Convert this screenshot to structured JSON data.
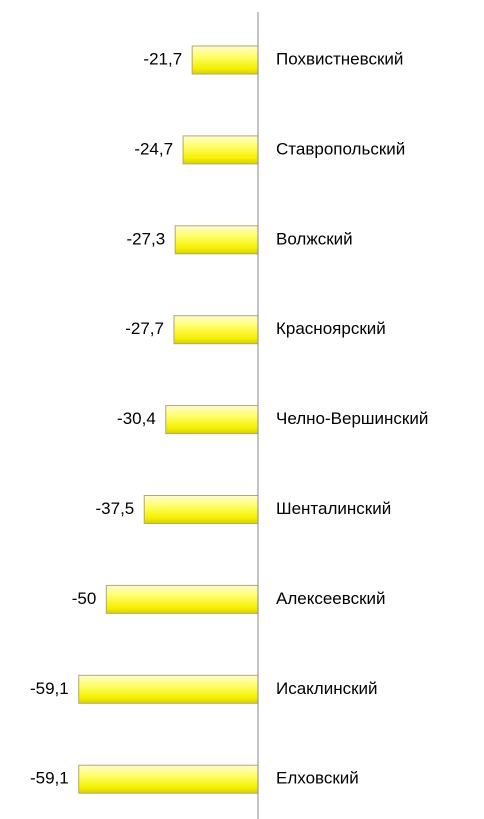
{
  "chart_data": {
    "type": "bar",
    "orientation": "horizontal",
    "categories": [
      "Похвистневский",
      "Ставропольский",
      "Волжский",
      "Красноярский",
      "Челно-Вершинский",
      "Шенталинский",
      "Алексеевский",
      "Исаклинский",
      "Елховский"
    ],
    "values": [
      -21.7,
      -24.7,
      -27.3,
      -27.7,
      -30.4,
      -37.5,
      -50,
      -59.1,
      -59.1
    ],
    "value_labels": [
      "-21,7",
      "-24,7",
      "-27,3",
      "-27,7",
      "-30,4",
      "-37,5",
      "-50",
      "-59,1",
      "-59,1"
    ],
    "color": "#ffff66",
    "xlim": [
      -60,
      0
    ]
  }
}
